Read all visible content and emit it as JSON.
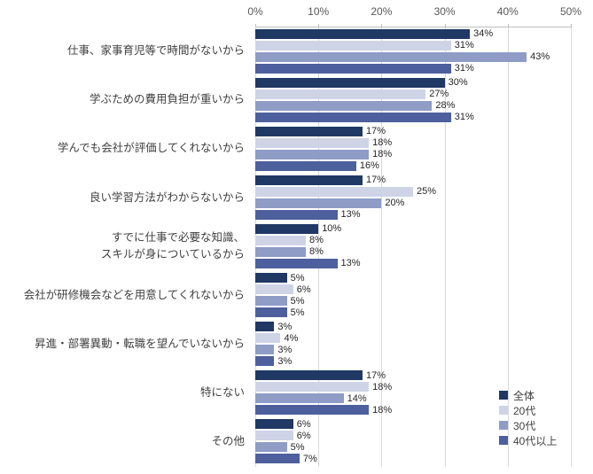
{
  "chart_data": {
    "type": "bar",
    "orientation": "horizontal",
    "unit": "%",
    "xlim": [
      0,
      50
    ],
    "x_ticks": [
      "0%",
      "10%",
      "20%",
      "30%",
      "40%",
      "50%"
    ],
    "grid": true,
    "legend_position": "bottom-right",
    "categories": [
      "仕事、家事育児等で時間がないから",
      "学ぶための費用負担が重いから",
      "学んでも会社が評価してくれないから",
      "良い学習方法がわからないから",
      "すでに仕事で必要な知識、\nスキルが身についているから",
      "会社が研修機会などを用意してくれないから",
      "昇進・部署異動・転職を望んでいないから",
      "特にない",
      "その他"
    ],
    "series": [
      {
        "name": "全体",
        "color": "#1F3864",
        "values": [
          34,
          30,
          17,
          17,
          10,
          5,
          3,
          17,
          6
        ]
      },
      {
        "name": "20代",
        "color": "#CED4E6",
        "values": [
          31,
          27,
          18,
          25,
          8,
          6,
          4,
          18,
          6
        ]
      },
      {
        "name": "30代",
        "color": "#8E9CC6",
        "values": [
          43,
          28,
          18,
          20,
          8,
          5,
          3,
          14,
          5
        ]
      },
      {
        "name": "40代以上",
        "color": "#4D5F9C",
        "values": [
          31,
          31,
          16,
          13,
          13,
          5,
          3,
          18,
          7
        ]
      }
    ]
  }
}
